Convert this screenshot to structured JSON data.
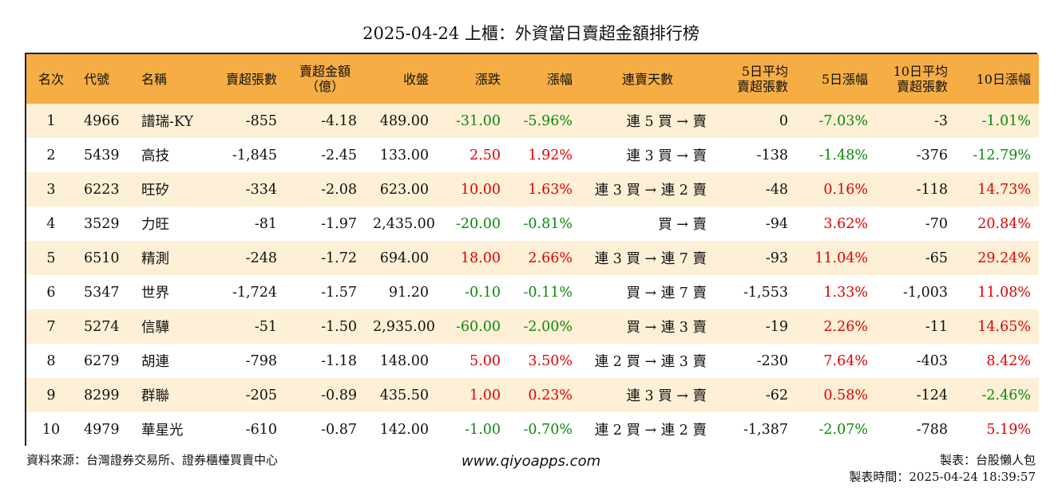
{
  "title": "2025-04-24 上櫃：外資當日賣超金額排行榜",
  "headers": {
    "rank": "名次",
    "code": "代號",
    "name": "名稱",
    "sell_lots": "賣超張數",
    "sell_amount_1": "賣超金額",
    "sell_amount_2": "（億）",
    "close": "收盤",
    "change": "漲跌",
    "pct": "漲幅",
    "streak": "連賣天數",
    "avg5_1": "5日平均",
    "avg5_2": "賣超張數",
    "pct5": "5日漲幅",
    "avg10_1": "10日平均",
    "avg10_2": "賣超張數",
    "pct10": "10日漲幅"
  },
  "rows": [
    {
      "rank": "1",
      "code": "4966",
      "name": "譜瑞-KY",
      "sell_lots": "-855",
      "amount": "-4.18",
      "close": "489.00",
      "change": "-31.00",
      "pct": "-5.96%",
      "streak": "連 5 買 → 賣",
      "avg5": "0",
      "pct5": "-7.03%",
      "avg10": "-3",
      "pct10": "-1.01%"
    },
    {
      "rank": "2",
      "code": "5439",
      "name": "高技",
      "sell_lots": "-1,845",
      "amount": "-2.45",
      "close": "133.00",
      "change": "2.50",
      "pct": "1.92%",
      "streak": "連 3 買 → 賣",
      "avg5": "-138",
      "pct5": "-1.48%",
      "avg10": "-376",
      "pct10": "-12.79%"
    },
    {
      "rank": "3",
      "code": "6223",
      "name": "旺矽",
      "sell_lots": "-334",
      "amount": "-2.08",
      "close": "623.00",
      "change": "10.00",
      "pct": "1.63%",
      "streak": "連 3 買 → 連 2 賣",
      "avg5": "-48",
      "pct5": "0.16%",
      "avg10": "-118",
      "pct10": "14.73%"
    },
    {
      "rank": "4",
      "code": "3529",
      "name": "力旺",
      "sell_lots": "-81",
      "amount": "-1.97",
      "close": "2,435.00",
      "change": "-20.00",
      "pct": "-0.81%",
      "streak": "買 → 賣",
      "avg5": "-94",
      "pct5": "3.62%",
      "avg10": "-70",
      "pct10": "20.84%"
    },
    {
      "rank": "5",
      "code": "6510",
      "name": "精測",
      "sell_lots": "-248",
      "amount": "-1.72",
      "close": "694.00",
      "change": "18.00",
      "pct": "2.66%",
      "streak": "連 3 買 → 連 7 賣",
      "avg5": "-93",
      "pct5": "11.04%",
      "avg10": "-65",
      "pct10": "29.24%"
    },
    {
      "rank": "6",
      "code": "5347",
      "name": "世界",
      "sell_lots": "-1,724",
      "amount": "-1.57",
      "close": "91.20",
      "change": "-0.10",
      "pct": "-0.11%",
      "streak": "買 → 連 7 賣",
      "avg5": "-1,553",
      "pct5": "1.33%",
      "avg10": "-1,003",
      "pct10": "11.08%"
    },
    {
      "rank": "7",
      "code": "5274",
      "name": "信驊",
      "sell_lots": "-51",
      "amount": "-1.50",
      "close": "2,935.00",
      "change": "-60.00",
      "pct": "-2.00%",
      "streak": "買 → 連 3 賣",
      "avg5": "-19",
      "pct5": "2.26%",
      "avg10": "-11",
      "pct10": "14.65%"
    },
    {
      "rank": "8",
      "code": "6279",
      "name": "胡連",
      "sell_lots": "-798",
      "amount": "-1.18",
      "close": "148.00",
      "change": "5.00",
      "pct": "3.50%",
      "streak": "連 2 買 → 連 3 賣",
      "avg5": "-230",
      "pct5": "7.64%",
      "avg10": "-403",
      "pct10": "8.42%"
    },
    {
      "rank": "9",
      "code": "8299",
      "name": "群聯",
      "sell_lots": "-205",
      "amount": "-0.89",
      "close": "435.50",
      "change": "1.00",
      "pct": "0.23%",
      "streak": "連 3 買 → 賣",
      "avg5": "-62",
      "pct5": "0.58%",
      "avg10": "-124",
      "pct10": "-2.46%"
    },
    {
      "rank": "10",
      "code": "4979",
      "name": "華星光",
      "sell_lots": "-610",
      "amount": "-0.87",
      "close": "142.00",
      "change": "-1.00",
      "pct": "-0.70%",
      "streak": "連 2 買 → 連 2 賣",
      "avg5": "-1,387",
      "pct5": "-2.07%",
      "avg10": "-788",
      "pct10": "5.19%"
    }
  ],
  "colors": {
    "header_bg": "#f6ad44",
    "odd_row_bg": "#fdf0d6",
    "positive": "#e00000",
    "negative": "#0b8a0b"
  },
  "footer": {
    "source": "資料來源：台灣證券交易所、證券櫃檯買賣中心",
    "website": "www.qiyoapps.com",
    "maker": "製表：台股懶人包",
    "made_time": "製表時間：2025-04-24 18:39:57"
  }
}
